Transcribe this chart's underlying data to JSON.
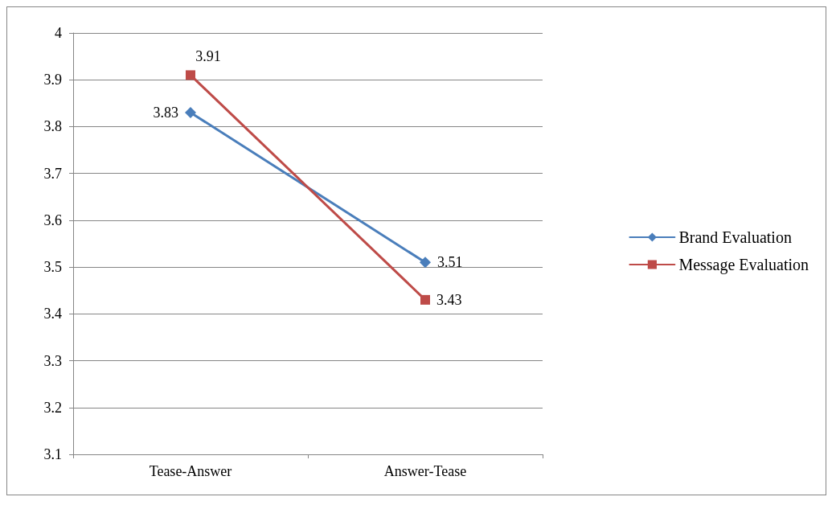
{
  "chart_data": {
    "type": "line",
    "categories": [
      "Tease-Answer",
      "Answer-Tease"
    ],
    "series": [
      {
        "name": "Brand Evaluation",
        "color": "#4a7ebb",
        "values": [
          3.83,
          3.51
        ],
        "marker": "diamond"
      },
      {
        "name": "Message Evaluation",
        "color": "#be4b48",
        "values": [
          3.91,
          3.43
        ],
        "marker": "square"
      }
    ],
    "ylim": [
      3.1,
      4
    ],
    "yticks": [
      3.1,
      3.2,
      3.3,
      3.4,
      3.5,
      3.6,
      3.7,
      3.8,
      3.9,
      4
    ],
    "grid": "y",
    "legend": "right",
    "data_labels": true,
    "line_style": "solid"
  }
}
